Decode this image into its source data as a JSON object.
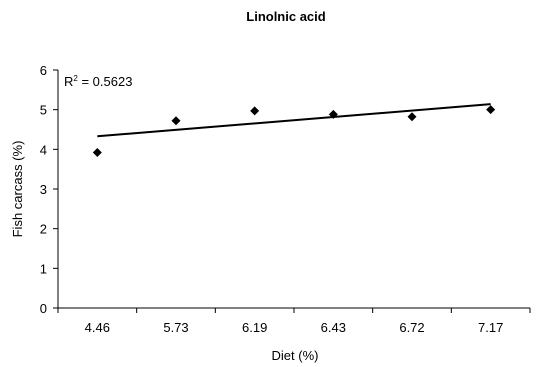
{
  "chart_data": {
    "type": "scatter",
    "title": "Linolnic acid",
    "xlabel": "Diet (%)",
    "ylabel": "Fish carcass (%)",
    "categories": [
      "4.46",
      "5.73",
      "6.19",
      "6.43",
      "6.72",
      "7.17"
    ],
    "series": [
      {
        "values": [
          3.92,
          4.72,
          4.97,
          4.88,
          4.82,
          5.0
        ]
      }
    ],
    "trendline": {
      "type": "linear",
      "start": 4.33,
      "end": 5.14
    },
    "annotation": {
      "r2_prefix": "R",
      "r2_sup": "2",
      "r2_value": " = 0.5623"
    },
    "ylim": [
      0,
      6
    ],
    "yticks": [
      "0",
      "1",
      "2",
      "3",
      "4",
      "5",
      "6"
    ],
    "grid": false,
    "legend": "none",
    "marker_color": "#000000",
    "line_color": "#000000"
  }
}
